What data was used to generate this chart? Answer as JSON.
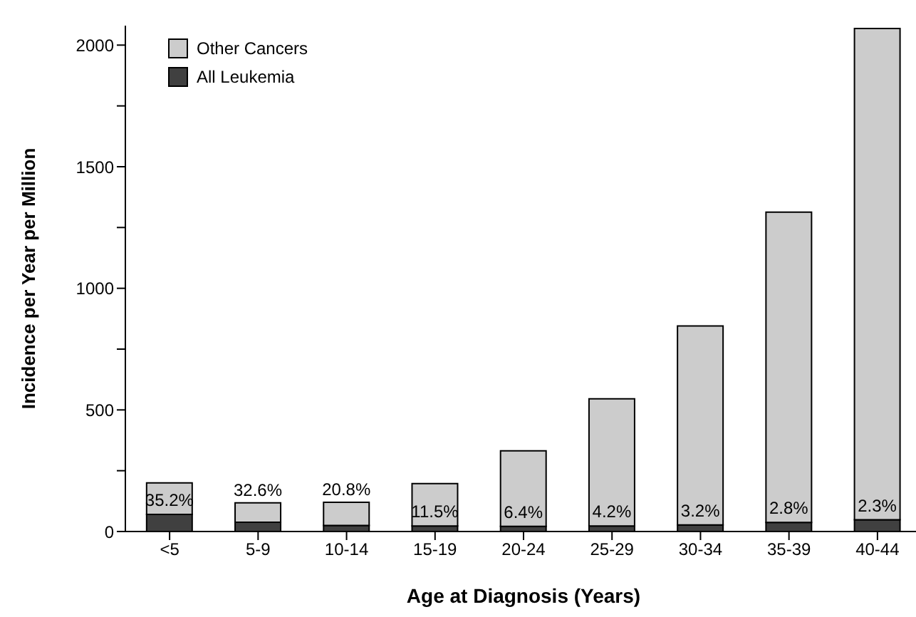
{
  "chart_data": {
    "type": "bar",
    "stacked": true,
    "xlabel": "Age at Diagnosis (Years)",
    "ylabel": "Incidence per Year per Million",
    "categories": [
      "<5",
      "5-9",
      "10-14",
      "15-19",
      "20-24",
      "25-29",
      "30-34",
      "35-39",
      "40-44"
    ],
    "series": [
      {
        "name": "All Leukemia",
        "color": "#404040",
        "values": [
          70,
          38,
          25,
          23,
          21,
          23,
          27,
          37,
          48
        ]
      },
      {
        "name": "Other Cancers",
        "color": "#cccccc",
        "values": [
          130,
          80,
          95,
          174,
          311,
          523,
          818,
          1276,
          2020
        ]
      }
    ],
    "annotations": [
      "35.2%",
      "32.6%",
      "20.8%",
      "11.5%",
      "6.4%",
      "4.2%",
      "3.2%",
      "2.8%",
      "2.3%"
    ],
    "ylim": [
      0,
      2080
    ],
    "yticks": [
      0,
      {
        "value": 250,
        "label": null
      },
      500,
      {
        "value": 750,
        "label": null
      },
      1000,
      {
        "value": 1250,
        "label": null
      },
      1500,
      {
        "value": 1750,
        "label": null
      },
      2000
    ],
    "grid": false,
    "legend": "top left"
  }
}
